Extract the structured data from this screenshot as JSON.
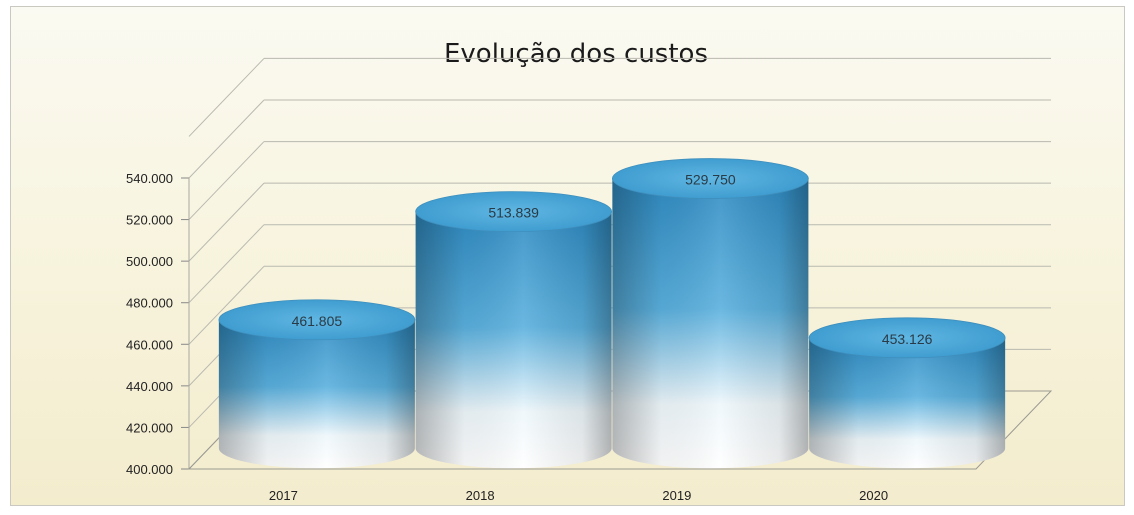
{
  "chart_data": {
    "type": "bar",
    "title": "Evolução dos custos",
    "categories": [
      "2017",
      "2018",
      "2019",
      "2020"
    ],
    "values": [
      461805,
      513839,
      529750,
      453126
    ],
    "data_labels": [
      "461.805",
      "513.839",
      "529.750",
      "453.126"
    ],
    "ylim": [
      400000,
      540000
    ],
    "yticks": [
      400000,
      420000,
      440000,
      460000,
      480000,
      500000,
      520000,
      540000
    ],
    "ytick_labels": [
      "400.000",
      "420.000",
      "440.000",
      "460.000",
      "480.000",
      "500.000",
      "520.000",
      "540.000"
    ],
    "xlabel": "",
    "ylabel": "",
    "grid": true,
    "legend": "none",
    "style": "3d-cylinder",
    "colors": {
      "bar_top": "#3a95c8",
      "bar_mid": "#62b4e0",
      "bar_bottom": "#ffffff",
      "cap": "#4aa6d6"
    }
  }
}
